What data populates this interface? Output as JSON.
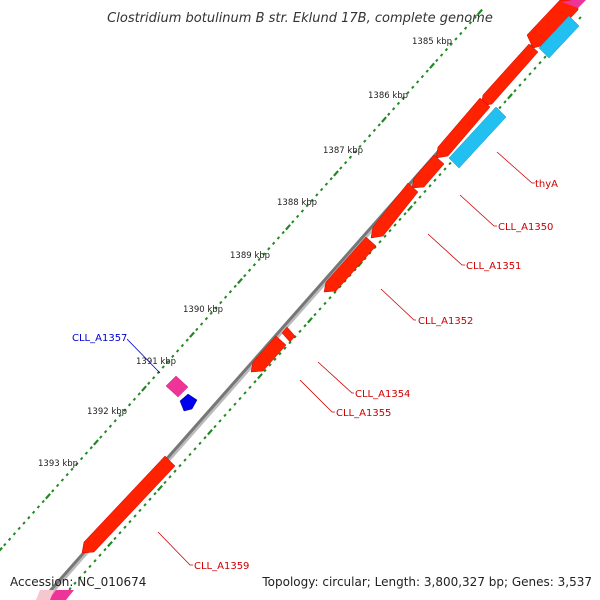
{
  "title": "Clostridium botulinum B str. Eklund 17B, complete genome",
  "accession": "Accession: NC_010674",
  "summary": "Topology: circular; Length: 3,800,327 bp; Genes: 3,537",
  "ticks": [
    "1385 kbp",
    "1386 kbp",
    "1387 kbp",
    "1388 kbp",
    "1389 kbp",
    "1390 kbp",
    "1391 kbp",
    "1392 kbp",
    "1393 kbp"
  ],
  "gene_labels": [
    {
      "text": "thyA",
      "color": "#cc0000"
    },
    {
      "text": "CLL_A1350",
      "color": "#cc0000"
    },
    {
      "text": "CLL_A1351",
      "color": "#cc0000"
    },
    {
      "text": "CLL_A1352",
      "color": "#cc0000"
    },
    {
      "text": "CLL_A1354",
      "color": "#cc0000"
    },
    {
      "text": "CLL_A1355",
      "color": "#cc0000"
    },
    {
      "text": "CLL_A1357",
      "color": "#0000cc"
    },
    {
      "text": "CLL_A1359",
      "color": "#cc0000"
    }
  ],
  "colors": {
    "cds": "#ff0000",
    "cds_dark": "#cc0000",
    "rna": "#22bbee",
    "misc": "#ee3399",
    "blue_feature": "#0000ee",
    "backbone": "#888888",
    "tick": "#228822"
  }
}
